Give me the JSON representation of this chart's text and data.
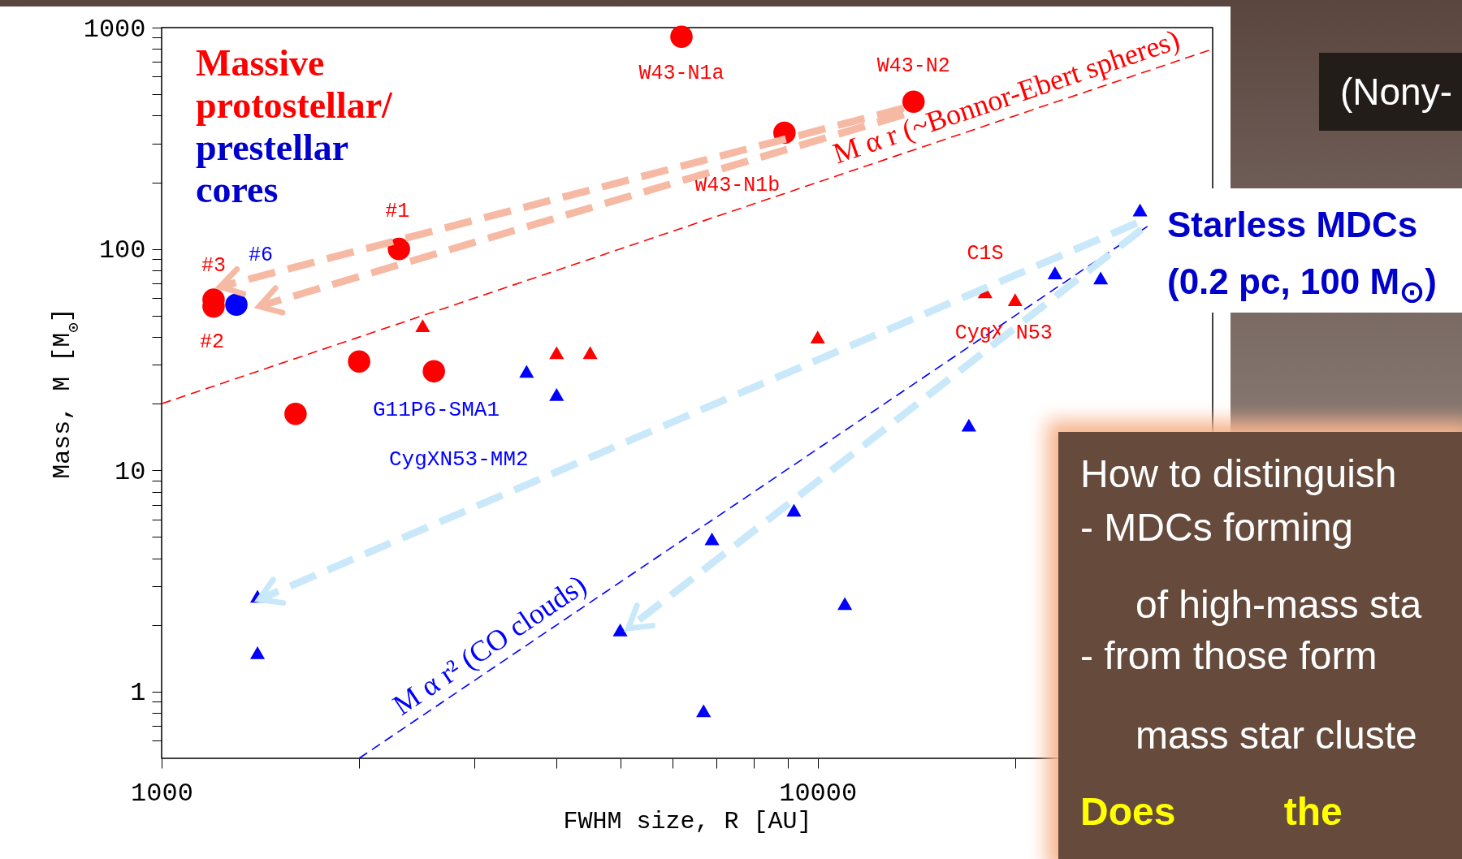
{
  "chart_data": {
    "type": "scatter",
    "xlabel": "FWHM size, R [AU]",
    "ylabel": "Mass, M [M$_{⊙}$]",
    "log": "xy",
    "grid": false,
    "xlim": [
      1000,
      40000
    ],
    "ylim": [
      0.5,
      1000
    ],
    "xticks": [
      1000,
      {
        "value": 2000,
        "label": null
      },
      {
        "value": 3000,
        "label": null
      },
      {
        "value": 4000,
        "label": null
      },
      {
        "value": 5000,
        "label": null
      },
      {
        "value": 6000,
        "label": null
      },
      {
        "value": 7000,
        "label": null
      },
      {
        "value": 8000,
        "label": null
      },
      {
        "value": 9000,
        "label": null
      },
      10000,
      {
        "value": 20000,
        "label": null
      },
      {
        "value": 30000,
        "label": null
      }
    ],
    "yticks": [
      {
        "value": 0.6,
        "label": null
      },
      {
        "value": 0.7,
        "label": null
      },
      {
        "value": 0.8,
        "label": null
      },
      {
        "value": 0.9,
        "label": null
      },
      1,
      {
        "value": 2,
        "label": null
      },
      {
        "value": 3,
        "label": null
      },
      {
        "value": 4,
        "label": null
      },
      {
        "value": 5,
        "label": null
      },
      {
        "value": 6,
        "label": null
      },
      {
        "value": 7,
        "label": null
      },
      {
        "value": 8,
        "label": null
      },
      {
        "value": 9,
        "label": null
      },
      10,
      {
        "value": 20,
        "label": null
      },
      {
        "value": 30,
        "label": null
      },
      {
        "value": 40,
        "label": null
      },
      {
        "value": 50,
        "label": null
      },
      {
        "value": 60,
        "label": null
      },
      {
        "value": 70,
        "label": null
      },
      {
        "value": 80,
        "label": null
      },
      {
        "value": 90,
        "label": null
      },
      100,
      {
        "value": 200,
        "label": null
      },
      {
        "value": 300,
        "label": null
      },
      {
        "value": 400,
        "label": null
      },
      {
        "value": 500,
        "label": null
      },
      {
        "value": 600,
        "label": null
      },
      {
        "value": 700,
        "label": null
      },
      {
        "value": 800,
        "label": null
      },
      {
        "value": 900,
        "label": null
      },
      1000
    ],
    "series": [
      {
        "marker": "circle",
        "color": "#ff0000",
        "x": [
          2300,
          1200,
          1200,
          2000,
          2600,
          1600
        ],
        "values": [
          100,
          55,
          59,
          31,
          28,
          18
        ]
      },
      {
        "marker": "circle",
        "color": "#0000ff",
        "x": [
          1300
        ],
        "values": [
          56
        ]
      },
      {
        "marker": "circle",
        "color": "#ff0000",
        "x": [
          6200,
          8900,
          14000
        ],
        "values": [
          910,
          335,
          463
        ]
      },
      {
        "marker": "triangle",
        "color": "#ff0000",
        "x": [
          2500,
          4000,
          4500
        ],
        "values": [
          45,
          34,
          34
        ]
      },
      {
        "marker": "triangle",
        "color": "#ff0000",
        "x": [
          10000,
          18000,
          20000
        ],
        "values": [
          40,
          64,
          59
        ]
      },
      {
        "marker": "triangle",
        "color": "#0000ff",
        "x": [
          3600,
          4000,
          1400,
          1400,
          5000,
          6900,
          9200,
          6700,
          11000
        ],
        "values": [
          28,
          22,
          2.7,
          1.5,
          1.9,
          4.9,
          6.6,
          0.82,
          2.5
        ]
      },
      {
        "marker": "triangle",
        "color": "#0000ff",
        "x": [
          17000,
          23000,
          27000,
          31000
        ],
        "values": [
          16,
          78,
          74,
          150
        ]
      },
      {
        "type": "line",
        "name": "M α r (~Bonnor-Ebert spheres)",
        "line_style": "dashed",
        "color": "#ff0000",
        "x": [
          1000,
          40000
        ],
        "values": [
          20,
          800
        ]
      },
      {
        "type": "line",
        "name": "M α r² (CO clouds)",
        "line_style": "dashed",
        "color": "#0000ff",
        "x": [
          2000,
          32000
        ],
        "values": [
          0.5,
          128
        ]
      }
    ],
    "annotations": [
      "Massive protostellar/",
      "prestellar cores",
      "G11P6-SMA1",
      "CygXN53-MM2",
      "(Nony-",
      "Starless MDCs",
      "(0.2 pc, 100 M$_{⊙}$)",
      "How to distinguish",
      "- MDCs forming",
      "of high-mass sta",
      "- from those form",
      "mass star cluste",
      "Does the",
      {
        "text": "W43-N1a",
        "x": 6200,
        "y": 910
      },
      {
        "text": "W43-N1b",
        "x": 8900,
        "y": 335
      },
      {
        "text": "W43-N2",
        "x": 14000,
        "y": 463
      },
      {
        "text": "#1",
        "x": 2300,
        "y": 100
      },
      {
        "text": "#2",
        "x": 1200,
        "y": 55
      },
      {
        "text": "#3",
        "x": 1200,
        "y": 59
      },
      {
        "text": "#6",
        "x": 1300,
        "y": 56
      },
      {
        "text": "C1S",
        "x": 18000,
        "y": 64
      },
      {
        "text": "CygX-N53",
        "x": 20000,
        "y": 59
      }
    ]
  }
}
